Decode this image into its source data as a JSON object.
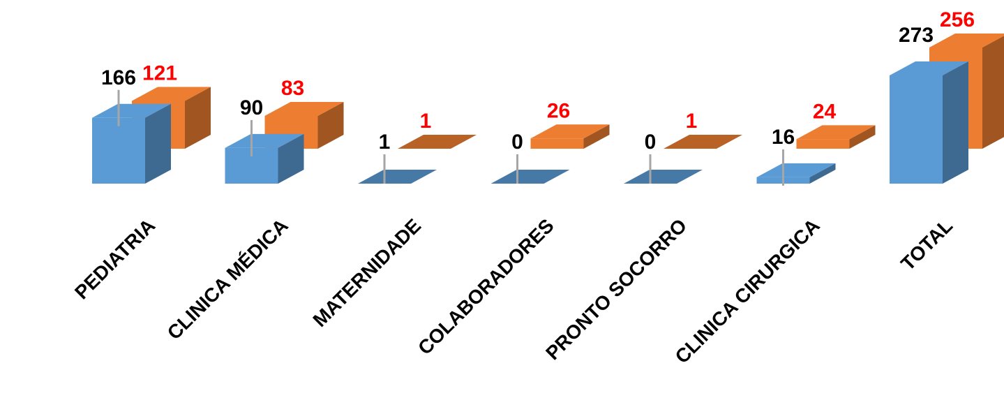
{
  "chart_data": {
    "type": "bar",
    "style": "3d-clustered-column",
    "categories": [
      "PEDIATRIA",
      "CLINICA MÉDICA",
      "MATERNIDADE",
      "COLABORADORES",
      "PRONTO SOCORRO",
      "CLINICA CIRURGICA",
      "TOTAL"
    ],
    "series": [
      {
        "values": [
          166,
          90,
          1,
          0,
          0,
          16,
          273
        ],
        "color": "#5B9BD5",
        "label_color": "#000000"
      },
      {
        "values": [
          121,
          83,
          1,
          26,
          1,
          24,
          256
        ],
        "color": "#ED7D31",
        "label_color": "#FF0000"
      }
    ],
    "title": "",
    "xlabel": "",
    "ylabel": "",
    "ylim": [
      0,
      280
    ],
    "grid": false,
    "legend": "none"
  }
}
